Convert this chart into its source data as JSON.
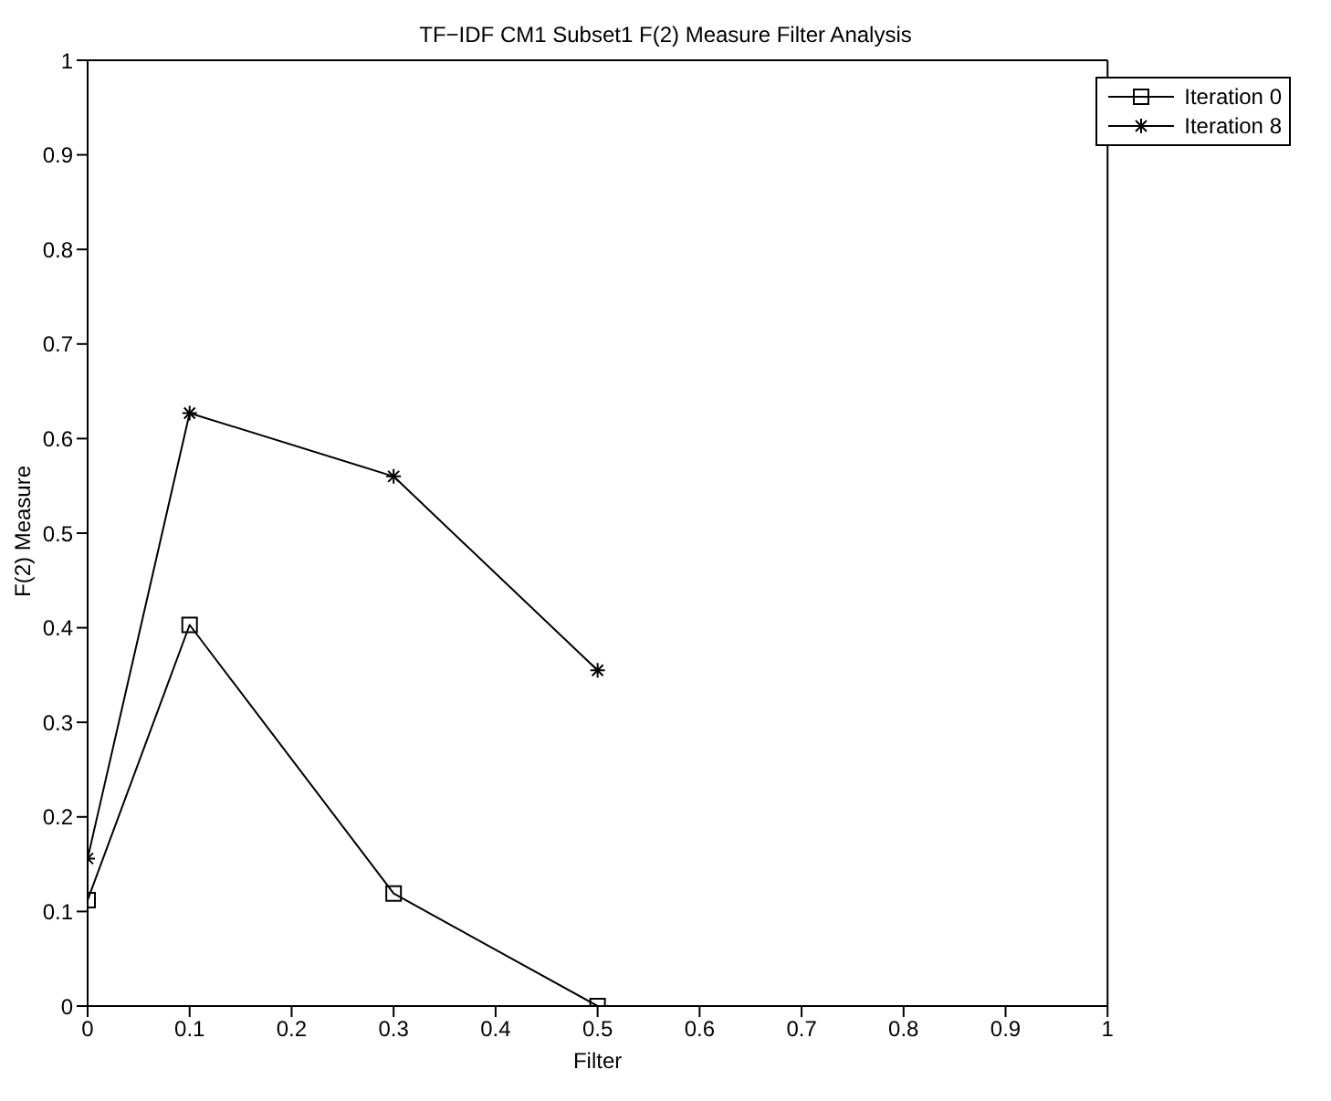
{
  "chart_data": {
    "type": "line",
    "title": "TF−IDF CM1 Subset1 F(2) Measure Filter Analysis",
    "xlabel": "Filter",
    "ylabel": "F(2) Measure",
    "x": [
      0,
      0.1,
      0.3,
      0.5
    ],
    "xlim": [
      0,
      1
    ],
    "xticks": [
      0,
      0.1,
      0.2,
      0.3,
      0.4,
      0.5,
      0.6,
      0.7,
      0.8,
      0.9,
      1
    ],
    "ylim": [
      0,
      1
    ],
    "yticks": [
      0,
      0.1,
      0.2,
      0.3,
      0.4,
      0.5,
      0.6,
      0.7,
      0.8,
      0.9,
      1
    ],
    "grid": false,
    "legend": "top right",
    "line_style": "solid",
    "series": [
      {
        "name": "Iteration 0",
        "color": "#000000",
        "marker": "square",
        "values": [
          0.112,
          0.403,
          0.119,
          0
        ]
      },
      {
        "name": "Iteration 8",
        "color": "#000000",
        "marker": "cross",
        "values": [
          0.156,
          0.627,
          0.56,
          0.355
        ]
      }
    ]
  }
}
